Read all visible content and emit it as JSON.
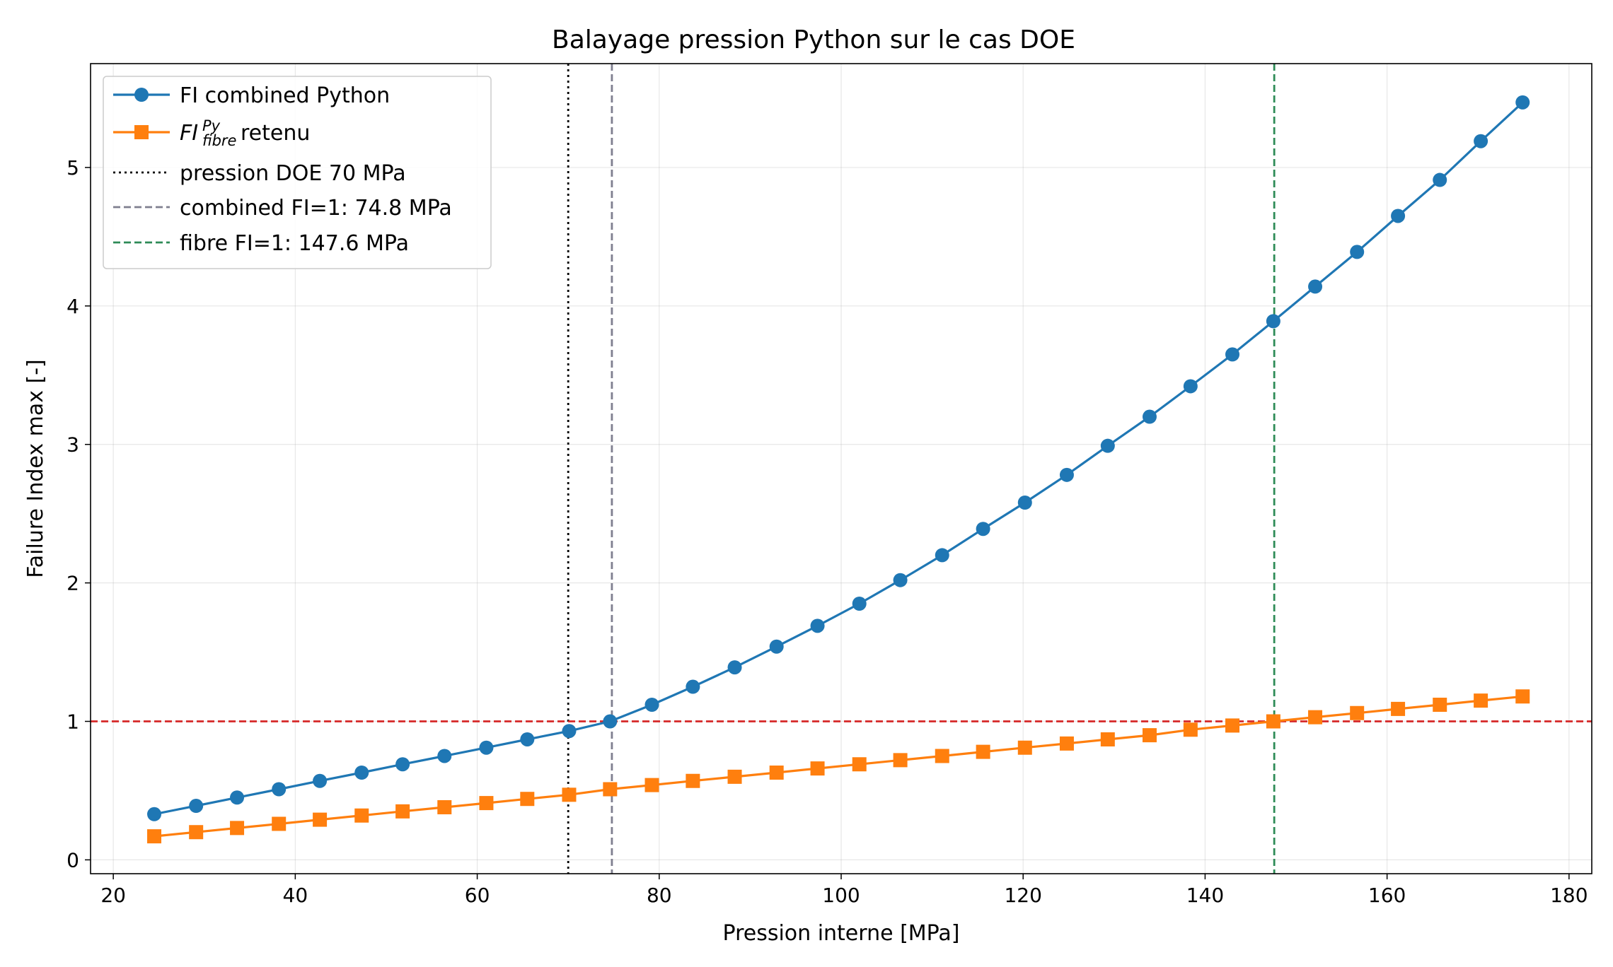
{
  "chart_data": {
    "type": "line",
    "title": "Balayage pression Python sur le cas DOE",
    "xlabel": "Pression interne [MPa]",
    "ylabel": "Failure Index max [-]",
    "xlim": [
      17.5,
      182.5
    ],
    "ylim": [
      -0.1,
      5.75
    ],
    "xticks": [
      20,
      40,
      60,
      80,
      100,
      120,
      140,
      160,
      180
    ],
    "yticks": [
      0,
      1,
      2,
      3,
      4,
      5
    ],
    "grid": true,
    "legend_position": "upper-left",
    "x": [
      24.5,
      29.1,
      33.6,
      38.2,
      42.7,
      47.3,
      51.8,
      56.4,
      61.0,
      65.5,
      70.1,
      74.6,
      79.2,
      83.7,
      88.3,
      92.9,
      97.4,
      102.0,
      106.5,
      111.1,
      115.6,
      120.2,
      124.8,
      129.3,
      133.9,
      138.4,
      143.0,
      147.5,
      152.1,
      156.7,
      161.2,
      165.8,
      170.3,
      174.9
    ],
    "series": [
      {
        "name": "FI combined Python",
        "color": "#1f77b4",
        "marker": "circle",
        "values": [
          0.33,
          0.39,
          0.45,
          0.51,
          0.57,
          0.63,
          0.69,
          0.75,
          0.81,
          0.87,
          0.93,
          1.0,
          1.12,
          1.25,
          1.39,
          1.54,
          1.69,
          1.85,
          2.02,
          2.2,
          2.39,
          2.58,
          2.78,
          2.99,
          3.2,
          3.42,
          3.65,
          3.89,
          4.14,
          4.39,
          4.65,
          4.91,
          5.19,
          5.47
        ]
      },
      {
        "name_parts": {
          "base": "FI",
          "sup": "Py",
          "sub": "fibre",
          "suffix": " retenu"
        },
        "color": "#ff7f0e",
        "marker": "square",
        "values": [
          0.17,
          0.2,
          0.23,
          0.26,
          0.29,
          0.32,
          0.35,
          0.38,
          0.41,
          0.44,
          0.47,
          0.51,
          0.54,
          0.57,
          0.6,
          0.63,
          0.66,
          0.69,
          0.72,
          0.75,
          0.78,
          0.81,
          0.84,
          0.87,
          0.9,
          0.94,
          0.97,
          1.0,
          1.03,
          1.06,
          1.09,
          1.12,
          1.15,
          1.18
        ]
      }
    ],
    "vlines": [
      {
        "name": "pression DOE 70 MPa",
        "x": 70.0,
        "color": "#000000",
        "style": "dotted"
      },
      {
        "name": "combined FI=1: 74.8 MPa",
        "x": 74.8,
        "color": "#7f7f8f",
        "style": "dashed"
      },
      {
        "name": "fibre FI=1: 147.6 MPa",
        "x": 147.6,
        "color": "#2e8b57",
        "style": "dashed"
      }
    ],
    "hlines": [
      {
        "y": 1.0,
        "color": "#d62728",
        "style": "dashed"
      }
    ]
  }
}
